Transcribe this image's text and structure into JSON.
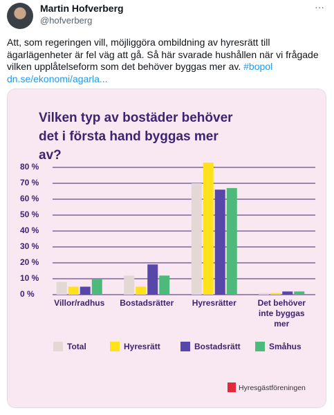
{
  "tweet": {
    "name": "Martin Hofverberg",
    "handle": "@hofverberg",
    "more": "···",
    "text": "Att, som regeringen vill, möjliggöra ombildning av hyresrätt till ägarlägenheter är fel väg att gå. Så här svarade hushållen när vi frågade vilken upplåtelseform som det behöver byggas mer av.",
    "hashtag": "#bopol",
    "link": "dn.se/ekonomi/agarla..."
  },
  "logo": "Hyresgästföreningen",
  "chart_data": {
    "type": "bar",
    "title": "Vilken typ av bostäder behöver det i första hand byggas mer av?",
    "categories": [
      "Villor/radhus",
      "Bostadsrätter",
      "Hyresrätter",
      "Det behöver inte byggas mer"
    ],
    "series": [
      {
        "name": "Total",
        "color": "#e3d8d3",
        "values": [
          8,
          12,
          70,
          1
        ]
      },
      {
        "name": "Hyresrätt",
        "color": "#ffe21c",
        "values": [
          5,
          5,
          83,
          1
        ]
      },
      {
        "name": "Bostadsrätt",
        "color": "#5747a8",
        "values": [
          5,
          19,
          66,
          2
        ]
      },
      {
        "name": "Småhus",
        "color": "#4db97b",
        "values": [
          10,
          12,
          67,
          2
        ]
      }
    ],
    "ylim": [
      0,
      85
    ],
    "yticks": [
      {
        "value": 0,
        "label": "0 %"
      },
      {
        "value": 10,
        "label": "10 %"
      },
      {
        "value": 20,
        "label": "20 %"
      },
      {
        "value": 30,
        "label": "30 %"
      },
      {
        "value": 40,
        "label": "40 %"
      },
      {
        "value": 50,
        "label": "50 %"
      },
      {
        "value": 60,
        "label": "60 %"
      },
      {
        "value": 70,
        "label": "70 %"
      },
      {
        "value": 80,
        "label": "80 %"
      }
    ],
    "grid": true
  }
}
